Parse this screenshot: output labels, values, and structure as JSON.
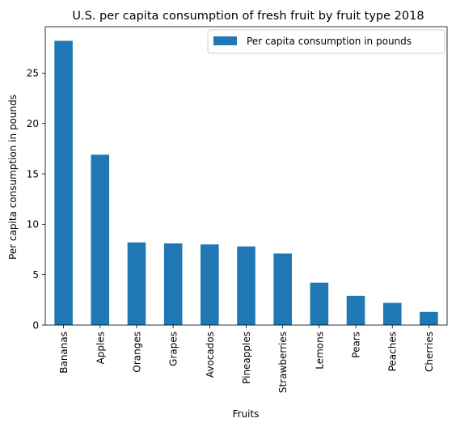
{
  "chart_data": {
    "type": "bar",
    "title": "U.S. per capita consumption of fresh fruit by fruit type 2018",
    "xlabel": "Fruits",
    "ylabel": "Per capita consumption in pounds",
    "categories": [
      "Bananas",
      "Apples",
      "Oranges",
      "Grapes",
      "Avocados",
      "Pineapples",
      "Strawberries",
      "Lemons",
      "Pears",
      "Peaches",
      "Cherries"
    ],
    "series": [
      {
        "name": "Per capita consumption in pounds",
        "values": [
          28.2,
          16.9,
          8.2,
          8.1,
          8.0,
          7.8,
          7.1,
          4.2,
          2.9,
          2.2,
          1.3
        ]
      }
    ],
    "ylim": [
      0,
      29.6
    ],
    "yticks": [
      0,
      5,
      10,
      15,
      20,
      25
    ],
    "grid": false,
    "legend": "top-right",
    "colors": {
      "bar": "#1f77b4"
    }
  }
}
